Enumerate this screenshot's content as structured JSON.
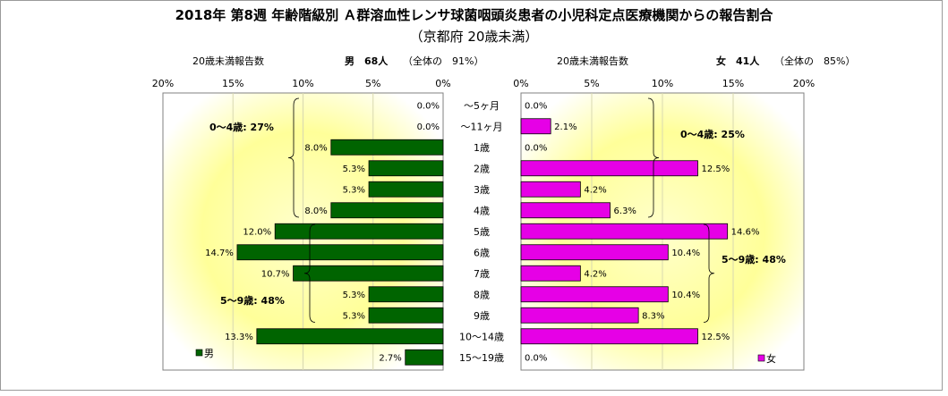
{
  "title": "2018年 第8週 年齢階級別 Ａ群溶血性レンサ球菌咽頭炎患者の小児科定点医療機関からの報告割合",
  "subtitle": "（京都府 20歳未満）",
  "left_header": {
    "caption": "20歳未満報告数",
    "summary": "男　68人",
    "share": "（全体の　91%）"
  },
  "right_header": {
    "caption": "20歳未満報告数",
    "summary": "女　41人",
    "share": "（全体の　85%）"
  },
  "chart_data": {
    "type": "bar",
    "orientation": "horizontal-butterfly",
    "categories": [
      "～5ヶ月",
      "～11ヶ月",
      "1歳",
      "2歳",
      "3歳",
      "4歳",
      "5歳",
      "6歳",
      "7歳",
      "8歳",
      "9歳",
      "10～14歳",
      "15～19歳"
    ],
    "xlim": [
      0,
      20
    ],
    "x_ticks": [
      "0%",
      "5%",
      "10%",
      "15%",
      "20%"
    ],
    "series": [
      {
        "name": "男",
        "color": "#006400",
        "side": "left",
        "values": [
          0.0,
          0.0,
          8.0,
          5.3,
          5.3,
          8.0,
          12.0,
          14.7,
          10.7,
          5.3,
          5.3,
          13.3,
          2.7
        ],
        "labels": [
          "0.0%",
          "0.0%",
          "8.0%",
          "5.3%",
          "5.3%",
          "8.0%",
          "12.0%",
          "14.7%",
          "10.7%",
          "5.3%",
          "5.3%",
          "13.3%",
          "2.7%"
        ]
      },
      {
        "name": "女",
        "color": "#e600e6",
        "side": "right",
        "values": [
          0.0,
          2.1,
          0.0,
          12.5,
          4.2,
          6.3,
          14.6,
          10.4,
          4.2,
          10.4,
          8.3,
          12.5,
          0.0
        ],
        "labels": [
          "0.0%",
          "2.1%",
          "0.0%",
          "12.5%",
          "4.2%",
          "6.3%",
          "14.6%",
          "10.4%",
          "4.2%",
          "10.4%",
          "8.3%",
          "12.5%",
          "0.0%"
        ]
      }
    ],
    "annotations": {
      "left_0_4": "0～4歳: 27%",
      "left_5_9": "5～9歳: 48%",
      "right_0_4": "0～4歳: 25%",
      "right_5_9": "5～9歳: 48%"
    },
    "legend_placement": "bottom-left / bottom-right of each panel",
    "plot_background": "yellow radial gradient"
  }
}
